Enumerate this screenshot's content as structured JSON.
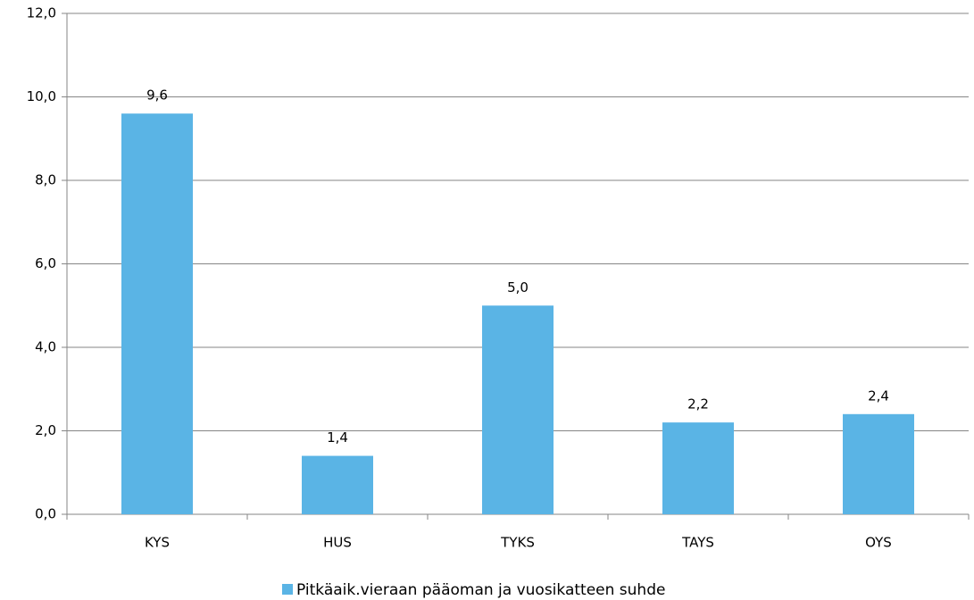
{
  "chart_data": {
    "type": "bar",
    "categories": [
      "KYS",
      "HUS",
      "TYKS",
      "TAYS",
      "OYS"
    ],
    "series": [
      {
        "name": "Pitkäaik.vieraan pääoman ja vuosikatteen suhde",
        "color": "#5ab4e5",
        "values": [
          9.6,
          1.4,
          5.0,
          2.2,
          2.4
        ],
        "value_labels": [
          "9,6",
          "1,4",
          "5,0",
          "2,2",
          "2,4"
        ]
      }
    ],
    "ylim": [
      0,
      12
    ],
    "yticks": [
      {
        "value": 0,
        "label": "0,0"
      },
      {
        "value": 2,
        "label": "2,0"
      },
      {
        "value": 4,
        "label": "4,0"
      },
      {
        "value": 6,
        "label": "6,0"
      },
      {
        "value": 8,
        "label": "8,0"
      },
      {
        "value": 10,
        "label": "10,0"
      },
      {
        "value": 12,
        "label": "12,0"
      }
    ],
    "grid": true,
    "legend": "bottom"
  }
}
